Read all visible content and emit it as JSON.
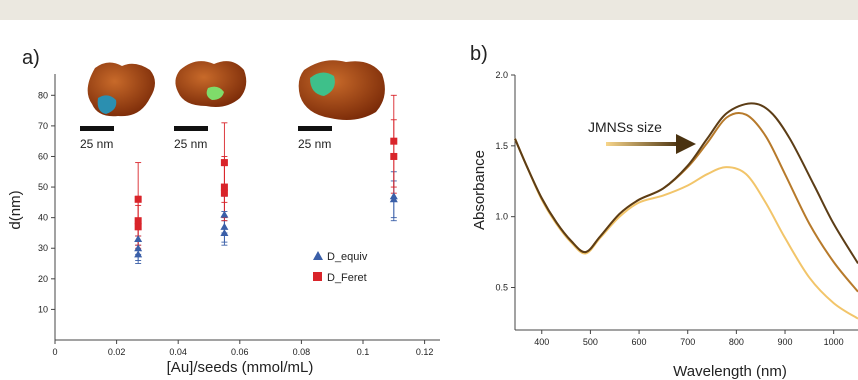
{
  "panel_a": {
    "label": "a)",
    "scale_bar_label": "25 nm",
    "chart_data": {
      "type": "scatter",
      "xlabel": "[Au]/seeds (mmol/mL)",
      "ylabel": "d(nm)",
      "xlim": [
        0,
        0.125
      ],
      "ylim": [
        0,
        85
      ],
      "xticks": [
        0,
        0.02,
        0.04,
        0.06,
        0.08,
        0.1,
        0.12
      ],
      "xtick_labels": [
        "0",
        "0.02",
        "0.04",
        "0.06",
        "0.08",
        "0.1",
        "0.12"
      ],
      "yticks": [
        10,
        20,
        30,
        40,
        50,
        60,
        70,
        80
      ],
      "ytick_labels": [
        "10",
        "20",
        "30",
        "40",
        "50",
        "60",
        "70",
        "80"
      ],
      "legend_position": "right",
      "series": [
        {
          "name": "D_equiv",
          "marker": "triangle",
          "color": "#3a5fa8",
          "points": [
            {
              "x": 0.027,
              "y": 28,
              "err": 3
            },
            {
              "x": 0.027,
              "y": 30,
              "err": 4
            },
            {
              "x": 0.027,
              "y": 33,
              "err": 5
            },
            {
              "x": 0.055,
              "y": 35,
              "err": 4
            },
            {
              "x": 0.055,
              "y": 37,
              "err": 5
            },
            {
              "x": 0.055,
              "y": 41,
              "err": 6
            },
            {
              "x": 0.11,
              "y": 46,
              "err": 6
            },
            {
              "x": 0.11,
              "y": 47,
              "err": 8
            }
          ]
        },
        {
          "name": "D_Feret",
          "marker": "square",
          "color": "#d9242a",
          "points": [
            {
              "x": 0.027,
              "y": 37,
              "err": 7
            },
            {
              "x": 0.027,
              "y": 39,
              "err": 8
            },
            {
              "x": 0.027,
              "y": 46,
              "err": 12
            },
            {
              "x": 0.055,
              "y": 48,
              "err": 9
            },
            {
              "x": 0.055,
              "y": 50,
              "err": 10
            },
            {
              "x": 0.055,
              "y": 58,
              "err": 13
            },
            {
              "x": 0.11,
              "y": 60,
              "err": 12
            },
            {
              "x": 0.11,
              "y": 65,
              "err": 15
            }
          ]
        }
      ]
    }
  },
  "panel_b": {
    "label": "b)",
    "arrow_label": "JMNSs size",
    "chart_data": {
      "type": "line",
      "xlabel": "Wavelength (nm)",
      "ylabel": "Absorbance",
      "xlim": [
        345,
        1050
      ],
      "ylim": [
        0.2,
        2.0
      ],
      "xticks": [
        400,
        500,
        600,
        700,
        800,
        900,
        1000
      ],
      "xtick_labels": [
        "400",
        "500",
        "600",
        "700",
        "800",
        "900",
        "1000"
      ],
      "yticks": [
        0.5,
        1.0,
        1.5,
        2.0
      ],
      "ytick_labels": [
        "0.5",
        "1.0",
        "1.5",
        "2.0"
      ],
      "series": [
        {
          "color": "#f2c56a",
          "x": [
            345,
            370,
            400,
            430,
            460,
            490,
            520,
            560,
            600,
            650,
            700,
            740,
            780,
            820,
            860,
            900,
            950,
            1000,
            1050
          ],
          "y": [
            1.55,
            1.35,
            1.12,
            0.95,
            0.82,
            0.74,
            0.85,
            1.0,
            1.1,
            1.15,
            1.22,
            1.3,
            1.35,
            1.3,
            1.1,
            0.85,
            0.57,
            0.39,
            0.28
          ]
        },
        {
          "color": "#b77a2b",
          "x": [
            345,
            370,
            400,
            430,
            460,
            490,
            520,
            560,
            600,
            650,
            700,
            740,
            780,
            820,
            860,
            900,
            950,
            1000,
            1050
          ],
          "y": [
            1.55,
            1.35,
            1.13,
            0.96,
            0.83,
            0.75,
            0.86,
            1.02,
            1.12,
            1.2,
            1.35,
            1.52,
            1.7,
            1.72,
            1.57,
            1.3,
            0.95,
            0.68,
            0.47
          ]
        },
        {
          "color": "#5c3d16",
          "x": [
            345,
            370,
            400,
            430,
            460,
            490,
            520,
            560,
            600,
            650,
            700,
            740,
            780,
            830,
            870,
            910,
            960,
            1000,
            1050
          ],
          "y": [
            1.55,
            1.35,
            1.13,
            0.96,
            0.83,
            0.75,
            0.86,
            1.02,
            1.12,
            1.2,
            1.36,
            1.55,
            1.73,
            1.8,
            1.74,
            1.55,
            1.22,
            0.95,
            0.67
          ]
        }
      ]
    }
  }
}
